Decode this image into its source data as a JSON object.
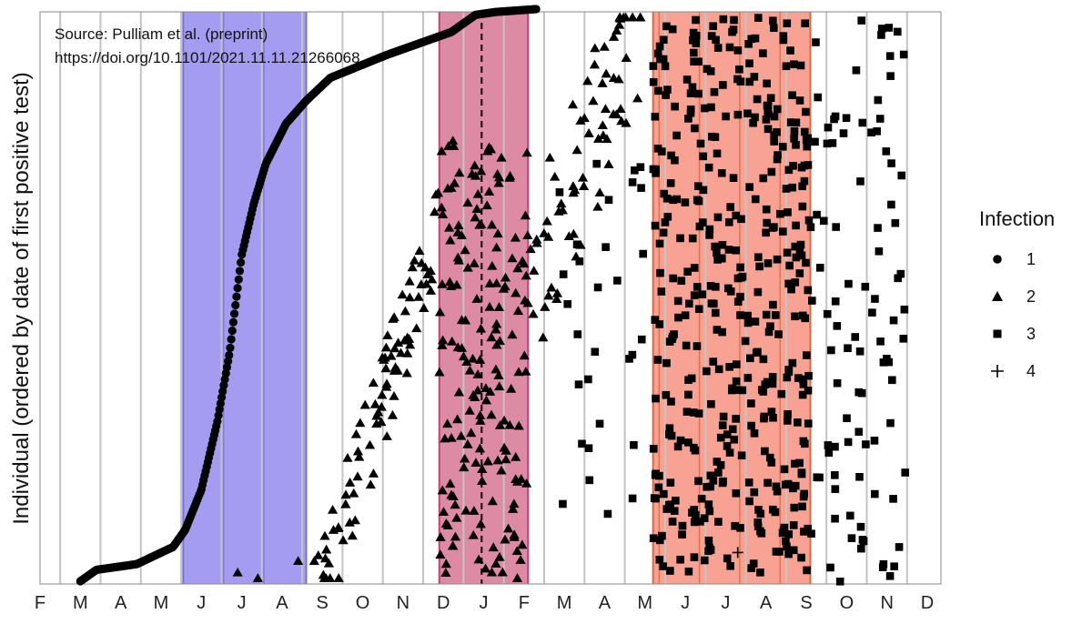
{
  "chart_data": {
    "type": "scatter",
    "source_line1": "Source: Pulliam et al. (preprint)",
    "source_line2": "https://doi.org/10.1101/2021.11.11.21266068",
    "ylabel": "Individual (ordered by date of first positive test)",
    "xlabel": "",
    "x_ticks": [
      "F",
      "M",
      "A",
      "M",
      "J",
      "J",
      "A",
      "S",
      "O",
      "N",
      "D",
      "J",
      "F",
      "M",
      "A",
      "M",
      "J",
      "J",
      "A",
      "S",
      "O",
      "N",
      "D"
    ],
    "grid": true,
    "legend": {
      "title": "Infection",
      "placement": "right",
      "entries": [
        {
          "label": "1",
          "shape": "circle"
        },
        {
          "label": "2",
          "shape": "triangle"
        },
        {
          "label": "3",
          "shape": "square"
        },
        {
          "label": "4",
          "shape": "plus"
        }
      ]
    },
    "colors": {
      "wave1": "#a49cf0",
      "wave1_line": "#7b6fe0",
      "wave2": "#dd8aa5",
      "wave2_line": "#c8407a",
      "wave3": "#f7a292",
      "wave3_line": "#e0663e",
      "grid": "#c4c4c4",
      "marks": "#000000"
    },
    "wave_bands": [
      {
        "start_month_index": 3.55,
        "end_month_index": 6.6,
        "inner_lines": [
          4.55,
          5.55
        ]
      },
      {
        "start_month_index": 9.9,
        "end_month_index": 12.1,
        "inner_lines": [],
        "dashed_line": 10.95
      },
      {
        "start_month_index": 15.2,
        "end_month_index": 19.1,
        "inner_lines": [
          15.35,
          16.35,
          17.35,
          18.35
        ]
      }
    ],
    "y_range": [
      0,
      1
    ]
  }
}
